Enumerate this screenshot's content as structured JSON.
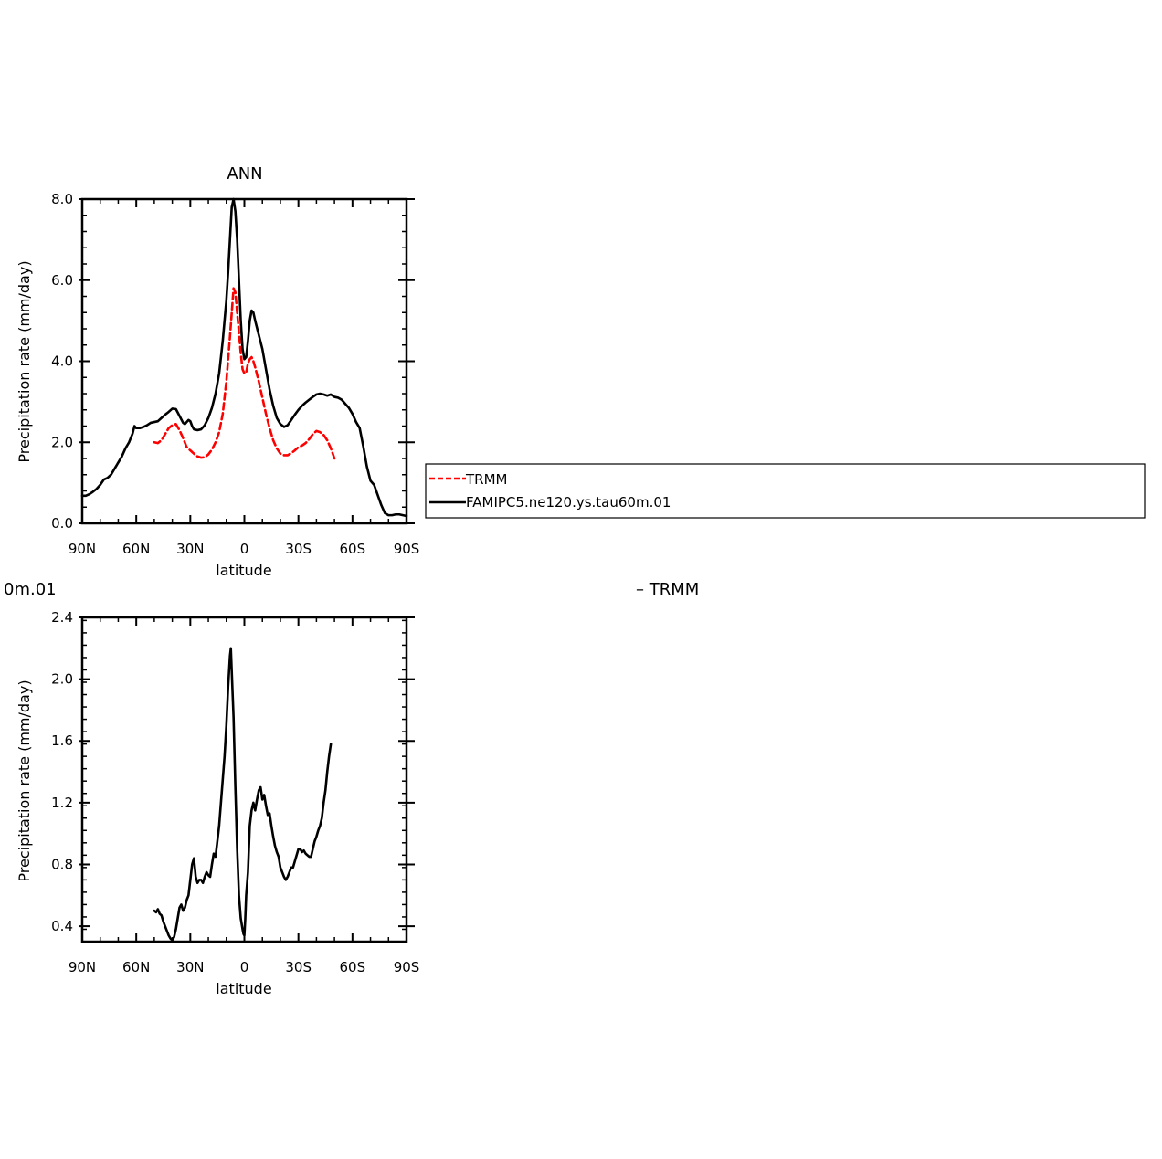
{
  "figure": {
    "top_left_fragment": "0m.01",
    "diff_label": "– TRMM"
  },
  "legend": {
    "entries": [
      {
        "label": "TRMM",
        "color": "#ff0000",
        "dash": true
      },
      {
        "label": "FAMIPC5.ne120.ys.tau60m.01",
        "color": "#000000",
        "dash": false
      }
    ]
  },
  "chart_data": [
    {
      "type": "line",
      "title": "ANN",
      "xlabel": "latitude",
      "ylabel": "Precipitation rate (mm/day)",
      "xlim": [
        90,
        -90
      ],
      "ylim": [
        0,
        8
      ],
      "xticks": [
        90,
        60,
        30,
        0,
        -30,
        -60,
        -90
      ],
      "xtick_labels": [
        "90N",
        "60N",
        "30N",
        "0",
        "30S",
        "60S",
        "90S"
      ],
      "yticks": [
        0,
        2,
        4,
        6,
        8
      ],
      "ytick_labels": [
        "0.0",
        "2.0",
        "4.0",
        "6.0",
        "8.0"
      ],
      "series": [
        {
          "name": "TRMM",
          "color": "#ff0000",
          "dash": true,
          "points": [
            [
              50,
              2.0
            ],
            [
              48,
              1.98
            ],
            [
              46,
              2.05
            ],
            [
              44,
              2.2
            ],
            [
              42,
              2.35
            ],
            [
              40,
              2.42
            ],
            [
              38,
              2.45
            ],
            [
              36,
              2.3
            ],
            [
              34,
              2.1
            ],
            [
              32,
              1.88
            ],
            [
              30,
              1.8
            ],
            [
              28,
              1.72
            ],
            [
              26,
              1.65
            ],
            [
              24,
              1.62
            ],
            [
              22,
              1.63
            ],
            [
              20,
              1.7
            ],
            [
              18,
              1.82
            ],
            [
              16,
              2.0
            ],
            [
              14,
              2.25
            ],
            [
              12,
              2.7
            ],
            [
              10,
              3.5
            ],
            [
              8,
              4.6
            ],
            [
              6,
              5.8
            ],
            [
              5,
              5.7
            ],
            [
              4,
              5.2
            ],
            [
              3,
              4.7
            ],
            [
              2,
              4.2
            ],
            [
              1,
              3.8
            ],
            [
              0,
              3.7
            ],
            [
              -1,
              3.72
            ],
            [
              -2,
              3.95
            ],
            [
              -3,
              4.05
            ],
            [
              -4,
              4.1
            ],
            [
              -5,
              4.0
            ],
            [
              -6,
              3.85
            ],
            [
              -8,
              3.5
            ],
            [
              -10,
              3.1
            ],
            [
              -12,
              2.7
            ],
            [
              -14,
              2.35
            ],
            [
              -16,
              2.05
            ],
            [
              -18,
              1.85
            ],
            [
              -20,
              1.72
            ],
            [
              -22,
              1.68
            ],
            [
              -24,
              1.68
            ],
            [
              -26,
              1.73
            ],
            [
              -28,
              1.8
            ],
            [
              -30,
              1.88
            ],
            [
              -32,
              1.92
            ],
            [
              -34,
              1.98
            ],
            [
              -36,
              2.08
            ],
            [
              -38,
              2.2
            ],
            [
              -40,
              2.28
            ],
            [
              -42,
              2.25
            ],
            [
              -44,
              2.18
            ],
            [
              -46,
              2.05
            ],
            [
              -48,
              1.85
            ],
            [
              -50,
              1.6
            ]
          ]
        },
        {
          "name": "FAMIPC5.ne120.ys.tau60m.01",
          "color": "#000000",
          "dash": false,
          "points": [
            [
              90,
              0.68
            ],
            [
              88,
              0.68
            ],
            [
              86,
              0.72
            ],
            [
              84,
              0.78
            ],
            [
              82,
              0.85
            ],
            [
              80,
              0.95
            ],
            [
              78,
              1.08
            ],
            [
              76,
              1.12
            ],
            [
              74,
              1.2
            ],
            [
              72,
              1.35
            ],
            [
              70,
              1.5
            ],
            [
              68,
              1.65
            ],
            [
              66,
              1.85
            ],
            [
              64,
              2.0
            ],
            [
              62,
              2.22
            ],
            [
              61,
              2.4
            ],
            [
              60,
              2.35
            ],
            [
              58,
              2.35
            ],
            [
              56,
              2.38
            ],
            [
              54,
              2.42
            ],
            [
              52,
              2.48
            ],
            [
              50,
              2.5
            ],
            [
              48,
              2.52
            ],
            [
              46,
              2.6
            ],
            [
              44,
              2.68
            ],
            [
              42,
              2.75
            ],
            [
              40,
              2.83
            ],
            [
              38,
              2.82
            ],
            [
              36,
              2.65
            ],
            [
              34,
              2.48
            ],
            [
              33,
              2.45
            ],
            [
              32,
              2.5
            ],
            [
              31,
              2.55
            ],
            [
              30,
              2.52
            ],
            [
              29,
              2.4
            ],
            [
              28,
              2.32
            ],
            [
              26,
              2.3
            ],
            [
              24,
              2.32
            ],
            [
              22,
              2.42
            ],
            [
              20,
              2.6
            ],
            [
              18,
              2.85
            ],
            [
              16,
              3.2
            ],
            [
              14,
              3.7
            ],
            [
              12,
              4.5
            ],
            [
              10,
              5.5
            ],
            [
              9,
              6.2
            ],
            [
              8,
              7.0
            ],
            [
              7,
              7.8
            ],
            [
              6,
              8.0
            ],
            [
              5,
              7.7
            ],
            [
              4,
              7.0
            ],
            [
              3,
              6.0
            ],
            [
              2,
              5.0
            ],
            [
              1,
              4.3
            ],
            [
              0,
              4.05
            ],
            [
              -1,
              4.1
            ],
            [
              -2,
              4.5
            ],
            [
              -3,
              5.0
            ],
            [
              -4,
              5.25
            ],
            [
              -5,
              5.2
            ],
            [
              -6,
              5.0
            ],
            [
              -8,
              4.65
            ],
            [
              -10,
              4.3
            ],
            [
              -12,
              3.8
            ],
            [
              -14,
              3.3
            ],
            [
              -16,
              2.9
            ],
            [
              -18,
              2.6
            ],
            [
              -20,
              2.45
            ],
            [
              -22,
              2.38
            ],
            [
              -24,
              2.42
            ],
            [
              -26,
              2.55
            ],
            [
              -28,
              2.68
            ],
            [
              -30,
              2.8
            ],
            [
              -32,
              2.9
            ],
            [
              -34,
              2.98
            ],
            [
              -36,
              3.05
            ],
            [
              -38,
              3.12
            ],
            [
              -40,
              3.18
            ],
            [
              -42,
              3.2
            ],
            [
              -44,
              3.18
            ],
            [
              -46,
              3.15
            ],
            [
              -48,
              3.18
            ],
            [
              -50,
              3.12
            ],
            [
              -52,
              3.1
            ],
            [
              -54,
              3.05
            ],
            [
              -56,
              2.95
            ],
            [
              -58,
              2.85
            ],
            [
              -60,
              2.7
            ],
            [
              -62,
              2.5
            ],
            [
              -64,
              2.35
            ],
            [
              -66,
              1.9
            ],
            [
              -68,
              1.4
            ],
            [
              -70,
              1.05
            ],
            [
              -72,
              0.95
            ],
            [
              -74,
              0.7
            ],
            [
              -76,
              0.45
            ],
            [
              -78,
              0.25
            ],
            [
              -80,
              0.2
            ],
            [
              -82,
              0.2
            ],
            [
              -84,
              0.22
            ],
            [
              -86,
              0.22
            ],
            [
              -88,
              0.2
            ],
            [
              -90,
              0.18
            ]
          ]
        }
      ]
    },
    {
      "type": "line",
      "title": "",
      "xlabel": "latitude",
      "ylabel": "Precipitation rate (mm/day)",
      "xlim": [
        90,
        -90
      ],
      "ylim": [
        0.3,
        2.4
      ],
      "xticks": [
        90,
        60,
        30,
        0,
        -30,
        -60,
        -90
      ],
      "xtick_labels": [
        "90N",
        "60N",
        "30N",
        "0",
        "30S",
        "60S",
        "90S"
      ],
      "yticks": [
        0.4,
        0.8,
        1.2,
        1.6,
        2.0,
        2.4
      ],
      "ytick_labels": [
        "0.4",
        "0.8",
        "1.2",
        "1.6",
        "2.0",
        "2.4"
      ],
      "series": [
        {
          "color": "#000000",
          "dash": false,
          "points": [
            [
              50,
              0.5
            ],
            [
              49,
              0.49
            ],
            [
              48,
              0.51
            ],
            [
              47,
              0.48
            ],
            [
              46,
              0.47
            ],
            [
              45,
              0.43
            ],
            [
              44,
              0.4
            ],
            [
              43,
              0.37
            ],
            [
              42,
              0.34
            ],
            [
              41,
              0.32
            ],
            [
              40,
              0.31
            ],
            [
              39,
              0.33
            ],
            [
              38,
              0.38
            ],
            [
              37,
              0.45
            ],
            [
              36,
              0.52
            ],
            [
              35,
              0.54
            ],
            [
              34,
              0.5
            ],
            [
              33,
              0.52
            ],
            [
              32,
              0.57
            ],
            [
              31,
              0.6
            ],
            [
              30,
              0.7
            ],
            [
              29,
              0.8
            ],
            [
              28,
              0.84
            ],
            [
              27,
              0.72
            ],
            [
              26,
              0.68
            ],
            [
              25,
              0.7
            ],
            [
              24,
              0.7
            ],
            [
              23,
              0.68
            ],
            [
              22,
              0.72
            ],
            [
              21,
              0.75
            ],
            [
              20,
              0.73
            ],
            [
              19,
              0.72
            ],
            [
              18,
              0.8
            ],
            [
              17,
              0.87
            ],
            [
              16,
              0.85
            ],
            [
              15,
              0.95
            ],
            [
              14,
              1.05
            ],
            [
              13,
              1.2
            ],
            [
              12,
              1.35
            ],
            [
              11,
              1.5
            ],
            [
              10,
              1.7
            ],
            [
              9,
              1.95
            ],
            [
              8,
              2.15
            ],
            [
              7.5,
              2.2
            ],
            [
              7,
              2.05
            ],
            [
              6,
              1.75
            ],
            [
              5,
              1.3
            ],
            [
              4,
              0.9
            ],
            [
              3,
              0.6
            ],
            [
              2,
              0.45
            ],
            [
              1,
              0.38
            ],
            [
              0.5,
              0.35
            ],
            [
              0,
              0.34
            ],
            [
              -0.5,
              0.45
            ],
            [
              -1,
              0.6
            ],
            [
              -2,
              0.75
            ],
            [
              -3,
              1.05
            ],
            [
              -4,
              1.15
            ],
            [
              -5,
              1.2
            ],
            [
              -6,
              1.15
            ],
            [
              -7,
              1.22
            ],
            [
              -8,
              1.28
            ],
            [
              -9,
              1.3
            ],
            [
              -10,
              1.22
            ],
            [
              -11,
              1.25
            ],
            [
              -12,
              1.18
            ],
            [
              -13,
              1.12
            ],
            [
              -14,
              1.13
            ],
            [
              -15,
              1.05
            ],
            [
              -16,
              0.98
            ],
            [
              -17,
              0.92
            ],
            [
              -18,
              0.88
            ],
            [
              -19,
              0.85
            ],
            [
              -20,
              0.78
            ],
            [
              -21,
              0.75
            ],
            [
              -22,
              0.72
            ],
            [
              -23,
              0.7
            ],
            [
              -24,
              0.72
            ],
            [
              -25,
              0.75
            ],
            [
              -26,
              0.78
            ],
            [
              -27,
              0.78
            ],
            [
              -28,
              0.82
            ],
            [
              -29,
              0.86
            ],
            [
              -30,
              0.9
            ],
            [
              -31,
              0.9
            ],
            [
              -32,
              0.88
            ],
            [
              -33,
              0.89
            ],
            [
              -34,
              0.87
            ],
            [
              -35,
              0.86
            ],
            [
              -36,
              0.85
            ],
            [
              -37,
              0.85
            ],
            [
              -38,
              0.9
            ],
            [
              -39,
              0.95
            ],
            [
              -40,
              0.98
            ],
            [
              -41,
              1.02
            ],
            [
              -42,
              1.05
            ],
            [
              -43,
              1.1
            ],
            [
              -44,
              1.2
            ],
            [
              -45,
              1.28
            ],
            [
              -46,
              1.4
            ],
            [
              -47,
              1.5
            ],
            [
              -48,
              1.58
            ]
          ]
        }
      ]
    }
  ]
}
